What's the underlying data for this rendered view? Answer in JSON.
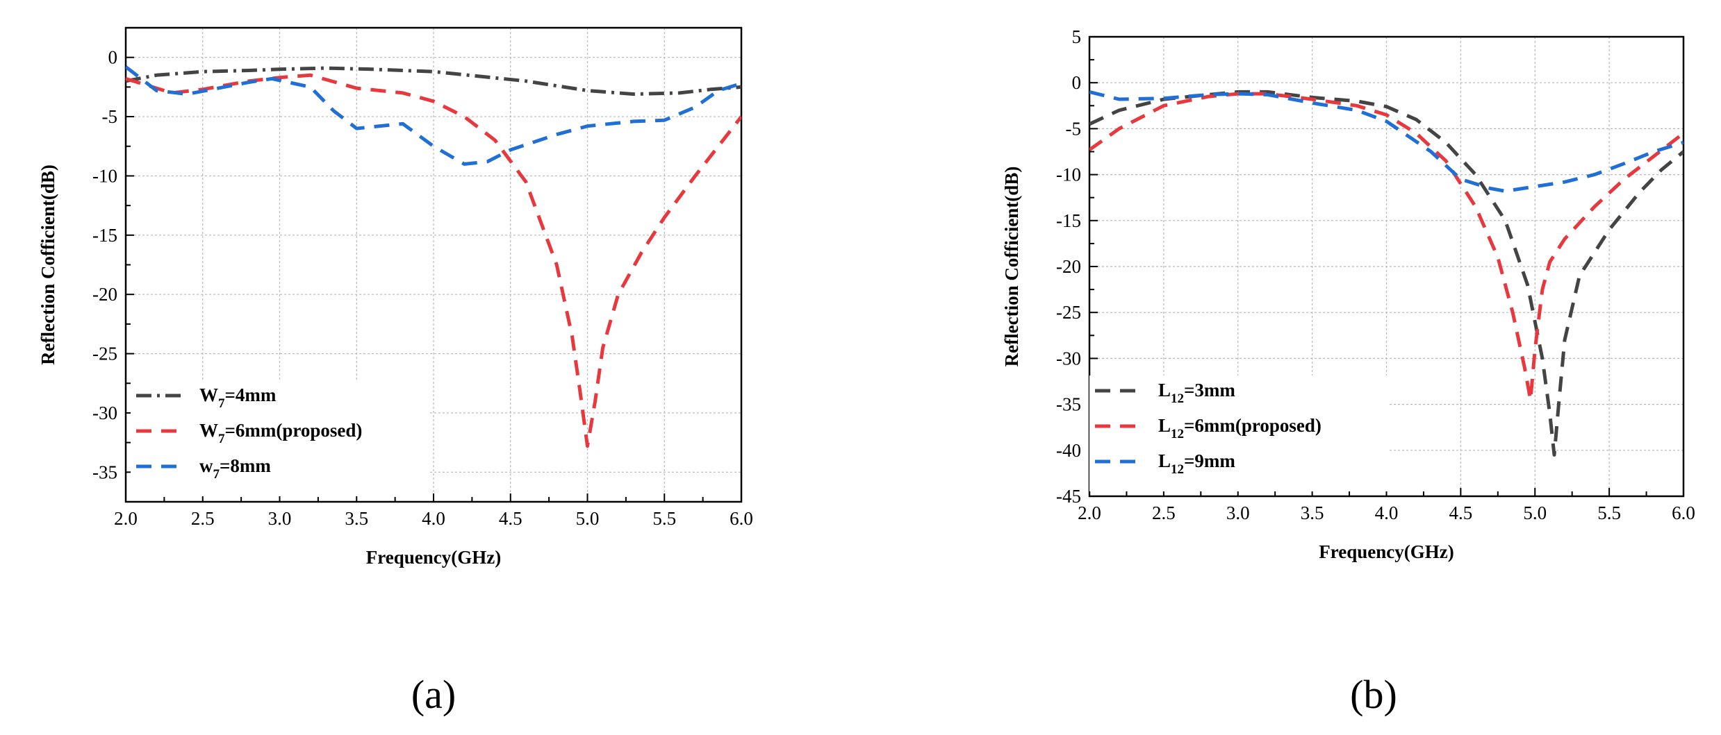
{
  "chart_data": [
    {
      "type": "line",
      "panel_label": "(a)",
      "xlabel": "Frequency(GHz)",
      "ylabel": "Reflection Cofficient(dB)",
      "xlim": [
        2.0,
        6.0
      ],
      "ylim": [
        -37.5,
        2.5
      ],
      "xticks": [
        "2.0",
        "2.5",
        "3.0",
        "3.5",
        "4.0",
        "4.5",
        "5.0",
        "5.5",
        "6.0"
      ],
      "yticks": [
        "0",
        "-5",
        "-10",
        "-15",
        "-20",
        "-25",
        "-30",
        "-35"
      ],
      "grid": true,
      "legend_position": "bottom-left",
      "series": [
        {
          "name": "W7=4mm",
          "label_main": "W",
          "label_sub": "7",
          "label_rest": "=4mm",
          "color": "#444444",
          "dash": "dashdot",
          "x": [
            2.0,
            2.2,
            2.5,
            2.8,
            3.0,
            3.3,
            3.6,
            4.0,
            4.3,
            4.6,
            5.0,
            5.3,
            5.6,
            5.8,
            6.0
          ],
          "y": [
            -2.0,
            -1.5,
            -1.2,
            -1.1,
            -1.0,
            -0.9,
            -1.0,
            -1.2,
            -1.6,
            -2.0,
            -2.8,
            -3.1,
            -3.0,
            -2.7,
            -2.5
          ]
        },
        {
          "name": "W7=6mm(proposed)",
          "label_main": "W",
          "label_sub": "7",
          "label_rest": "=6mm(proposed)",
          "color": "#e8383d",
          "dash": "dash",
          "x": [
            2.0,
            2.2,
            2.3,
            2.5,
            2.8,
            3.0,
            3.2,
            3.5,
            3.8,
            4.0,
            4.2,
            4.4,
            4.6,
            4.8,
            4.9,
            4.95,
            5.0,
            5.05,
            5.1,
            5.2,
            5.35,
            5.5,
            5.7,
            5.85,
            6.0
          ],
          "y": [
            -1.8,
            -2.6,
            -3.0,
            -2.7,
            -2.0,
            -1.7,
            -1.5,
            -2.6,
            -3.0,
            -3.7,
            -5.0,
            -7.0,
            -10.5,
            -17.5,
            -23.5,
            -28.0,
            -32.8,
            -29.0,
            -24.5,
            -20.0,
            -16.5,
            -13.5,
            -10.0,
            -7.5,
            -5.0
          ]
        },
        {
          "name": "w7=8mm",
          "label_main": "w",
          "label_sub": "7",
          "label_rest": "=8mm",
          "color": "#1f6fd6",
          "dash": "dash",
          "x": [
            2.0,
            2.2,
            2.4,
            2.6,
            2.8,
            2.95,
            3.2,
            3.35,
            3.5,
            3.8,
            4.0,
            4.2,
            4.35,
            4.5,
            4.8,
            5.0,
            5.3,
            5.5,
            5.7,
            5.85,
            6.0
          ],
          "y": [
            -0.8,
            -2.8,
            -3.1,
            -2.6,
            -2.1,
            -1.8,
            -2.5,
            -4.5,
            -6.0,
            -5.6,
            -7.5,
            -9.0,
            -8.8,
            -7.8,
            -6.5,
            -5.8,
            -5.4,
            -5.3,
            -4.2,
            -2.8,
            -2.2
          ]
        }
      ]
    },
    {
      "type": "line",
      "panel_label": "(b)",
      "xlabel": "Frequency(GHz)",
      "ylabel": "Reflection Cofficient(dB)",
      "xlim": [
        2.0,
        6.0
      ],
      "ylim": [
        -45,
        5
      ],
      "xticks": [
        "2.0",
        "2.5",
        "3.0",
        "3.5",
        "4.0",
        "4.5",
        "5.0",
        "5.5",
        "6.0"
      ],
      "yticks": [
        "5",
        "0",
        "-5",
        "-10",
        "-15",
        "-20",
        "-25",
        "-30",
        "-35",
        "-40",
        "-45"
      ],
      "grid": true,
      "legend_position": "bottom-left",
      "series": [
        {
          "name": "L12=3mm",
          "label_main": "L",
          "label_sub": "12",
          "label_rest": "=3mm",
          "color": "#444444",
          "dash": "dash",
          "x": [
            2.0,
            2.2,
            2.5,
            2.8,
            3.0,
            3.2,
            3.5,
            3.8,
            4.0,
            4.2,
            4.4,
            4.6,
            4.8,
            4.95,
            5.05,
            5.1,
            5.13,
            5.16,
            5.2,
            5.3,
            5.5,
            5.7,
            5.85,
            6.0
          ],
          "y": [
            -4.5,
            -3.0,
            -1.8,
            -1.3,
            -1.0,
            -1.0,
            -1.6,
            -2.0,
            -2.6,
            -4.0,
            -6.5,
            -10.0,
            -15.0,
            -22.0,
            -30.0,
            -36.0,
            -40.5,
            -35.0,
            -28.0,
            -21.0,
            -16.0,
            -12.0,
            -9.5,
            -7.5
          ]
        },
        {
          "name": "L12=6mm(proposed)",
          "label_main": "L",
          "label_sub": "12",
          "label_rest": "=6mm(proposed)",
          "color": "#e8383d",
          "dash": "dash",
          "x": [
            2.0,
            2.2,
            2.5,
            2.8,
            3.0,
            3.2,
            3.5,
            3.8,
            4.0,
            4.2,
            4.4,
            4.6,
            4.75,
            4.85,
            4.93,
            4.97,
            5.0,
            5.05,
            5.1,
            5.2,
            5.4,
            5.6,
            5.8,
            6.0
          ],
          "y": [
            -7.3,
            -5.0,
            -2.5,
            -1.5,
            -1.2,
            -1.2,
            -1.8,
            -2.5,
            -3.5,
            -5.5,
            -8.5,
            -13.5,
            -19.0,
            -25.0,
            -31.0,
            -34.5,
            -29.0,
            -22.5,
            -19.5,
            -17.0,
            -13.5,
            -10.5,
            -8.0,
            -5.5
          ]
        },
        {
          "name": "L12=9mm",
          "label_main": "L",
          "label_sub": "12",
          "label_rest": "=9mm",
          "color": "#1f6fd6",
          "dash": "dash",
          "x": [
            2.0,
            2.2,
            2.5,
            2.8,
            3.0,
            3.2,
            3.5,
            3.8,
            4.0,
            4.3,
            4.5,
            4.7,
            4.8,
            5.0,
            5.2,
            5.4,
            5.6,
            5.8,
            6.0
          ],
          "y": [
            -1.0,
            -1.8,
            -1.7,
            -1.3,
            -1.2,
            -1.3,
            -2.2,
            -3.0,
            -4.2,
            -7.5,
            -10.5,
            -11.5,
            -11.8,
            -11.3,
            -10.8,
            -10.0,
            -8.8,
            -7.5,
            -6.5
          ]
        }
      ]
    }
  ]
}
